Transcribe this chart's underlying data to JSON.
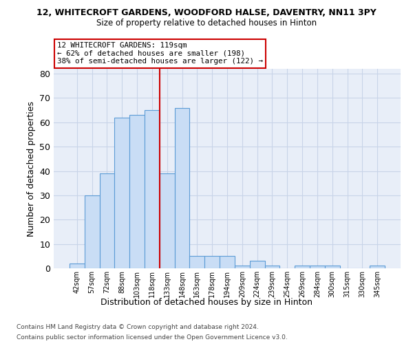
{
  "title1": "12, WHITECROFT GARDENS, WOODFORD HALSE, DAVENTRY, NN11 3PY",
  "title2": "Size of property relative to detached houses in Hinton",
  "xlabel": "Distribution of detached houses by size in Hinton",
  "ylabel": "Number of detached properties",
  "footer1": "Contains HM Land Registry data © Crown copyright and database right 2024.",
  "footer2": "Contains public sector information licensed under the Open Government Licence v3.0.",
  "annotation_line1": "12 WHITECROFT GARDENS: 119sqm",
  "annotation_line2": "← 62% of detached houses are smaller (198)",
  "annotation_line3": "38% of semi-detached houses are larger (122) →",
  "bin_labels": [
    "42sqm",
    "57sqm",
    "72sqm",
    "88sqm",
    "103sqm",
    "118sqm",
    "133sqm",
    "148sqm",
    "163sqm",
    "178sqm",
    "194sqm",
    "209sqm",
    "224sqm",
    "239sqm",
    "254sqm",
    "269sqm",
    "284sqm",
    "300sqm",
    "315sqm",
    "330sqm",
    "345sqm"
  ],
  "bar_values": [
    2,
    30,
    39,
    62,
    63,
    65,
    39,
    66,
    5,
    5,
    5,
    1,
    3,
    1,
    0,
    1,
    1,
    1,
    0,
    0,
    1
  ],
  "bar_color": "#c9ddf5",
  "bar_edge_color": "#5b9bd5",
  "vline_x": 5.5,
  "vline_color": "#cc0000",
  "annotation_box_color": "#cc0000",
  "grid_color": "#c8d4e8",
  "background_color": "#e8eef8",
  "ylim": [
    0,
    82
  ],
  "yticks": [
    0,
    10,
    20,
    30,
    40,
    50,
    60,
    70,
    80
  ]
}
